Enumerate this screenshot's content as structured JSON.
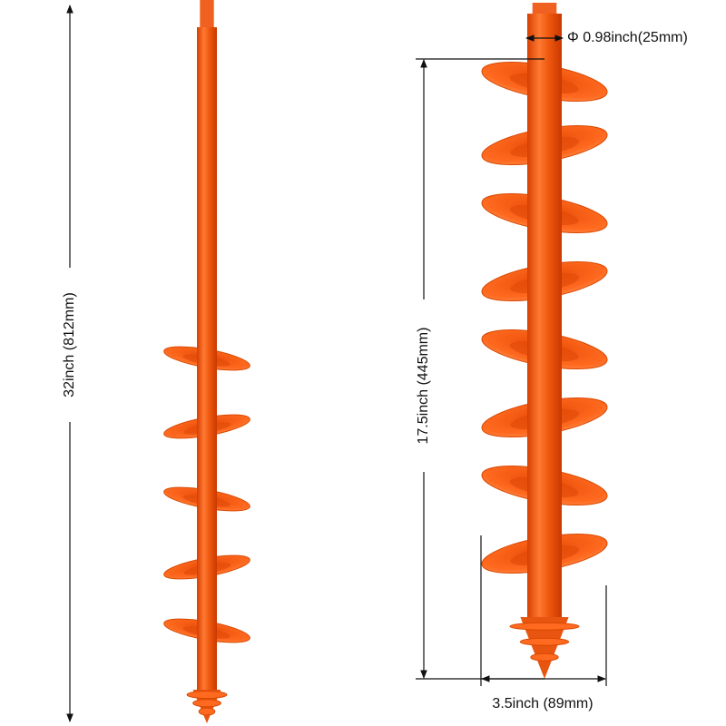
{
  "dimensions": {
    "total_length": "32inch (812mm)",
    "spiral_length": "17.5inch (445mm)",
    "shaft_diameter": "Φ 0.98inch(25mm)",
    "spiral_width": "3.5inch (89mm)"
  }
}
